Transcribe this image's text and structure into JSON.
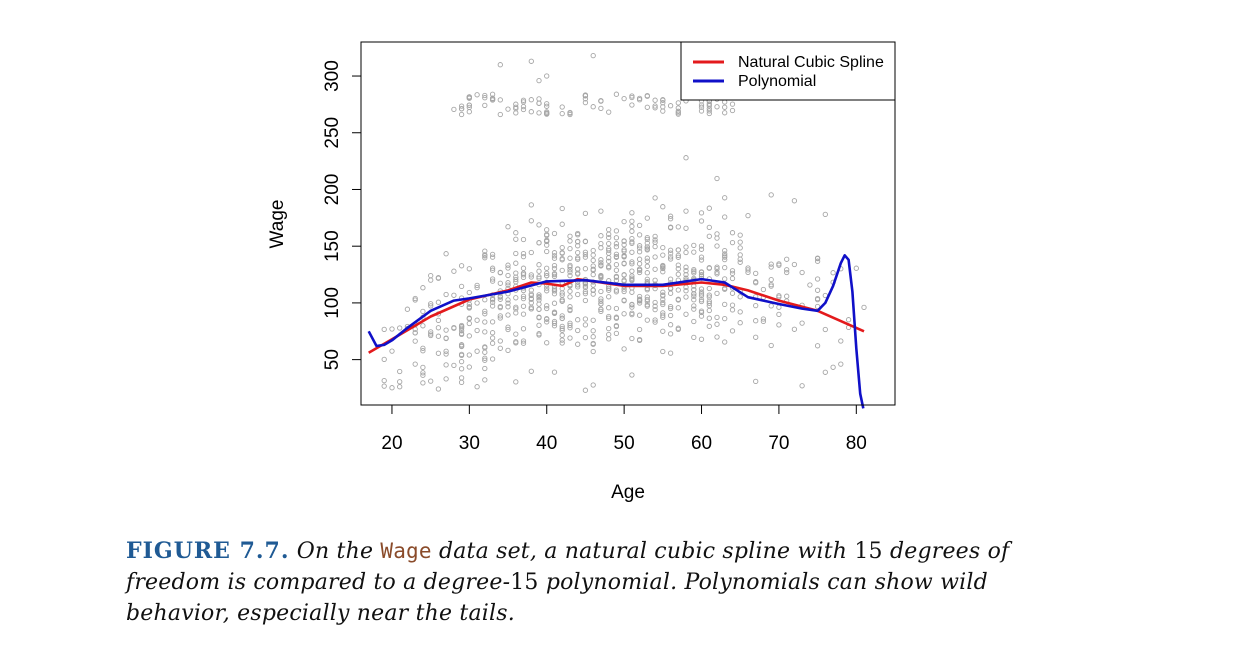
{
  "chart_data": {
    "type": "scatter",
    "xlabel": "Age",
    "ylabel": "Wage",
    "xlim": [
      16,
      85
    ],
    "ylim": [
      10,
      330
    ],
    "xticks": [
      20,
      30,
      40,
      50,
      60,
      70,
      80
    ],
    "yticks": [
      50,
      100,
      150,
      200,
      250,
      300
    ],
    "legend": {
      "position": "top-right",
      "entries": [
        "Natural Cubic Spline",
        "Polynomial"
      ]
    },
    "grid": false,
    "points_color": "#a6a6a6",
    "series": [
      {
        "name": "Natural Cubic Spline",
        "type": "line",
        "color": "#e31a1c",
        "x": [
          17,
          20,
          25,
          30,
          35,
          38,
          40,
          42,
          44,
          46,
          50,
          55,
          60,
          63,
          66,
          70,
          75,
          78,
          81
        ],
        "y": [
          56,
          68,
          88,
          103,
          111,
          118,
          117,
          115,
          121,
          119,
          115,
          115,
          118,
          116,
          111,
          102,
          93,
          84,
          75
        ]
      },
      {
        "name": "Polynomial",
        "type": "line",
        "color": "#1010c8",
        "x": [
          17,
          18,
          19,
          20,
          22,
          25,
          28,
          30,
          35,
          40,
          45,
          50,
          55,
          60,
          63,
          66,
          70,
          73,
          75,
          76,
          77,
          78,
          78.5,
          79,
          79.5,
          80,
          80.5,
          80.9
        ],
        "y": [
          75,
          62,
          63,
          67,
          78,
          93,
          102,
          104,
          110,
          119,
          120,
          116,
          116,
          121,
          118,
          105,
          99,
          95,
          93,
          100,
          115,
          135,
          142,
          138,
          110,
          60,
          20,
          7
        ]
      }
    ]
  },
  "caption": {
    "label": "FIGURE 7.7.",
    "part1": "On the",
    "code": "Wage",
    "part2": "data set, a natural cubic spline with",
    "num1": "15",
    "part3": "degrees of freedom is compared to a degree-",
    "num2": "15",
    "part4": "polynomial. Polynomials can show wild behavior, especially near the tails."
  }
}
